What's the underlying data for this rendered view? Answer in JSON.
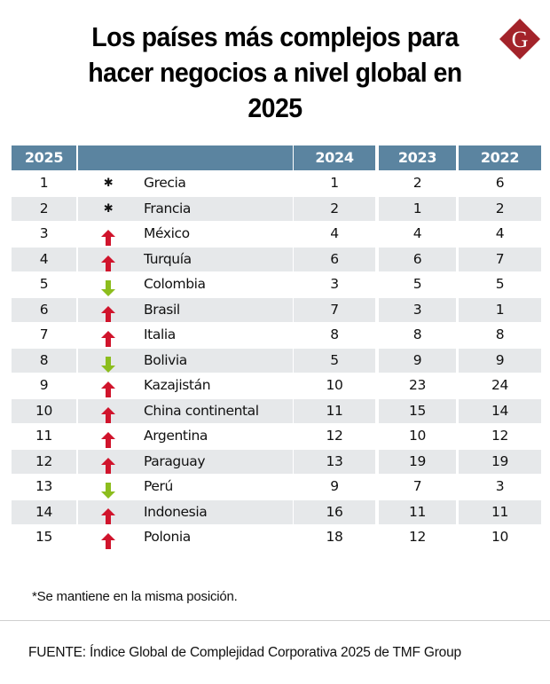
{
  "title": "Los países más complejos para hacer negocios a nivel global en 2025",
  "logo": {
    "letter": "G",
    "color": "#a3232a",
    "icon": "publisher-logo-diamond-g"
  },
  "colors": {
    "header_bg": "#5b84a0",
    "row_shaded": "#e6e8ea",
    "arrow_up": "#d0142c",
    "arrow_down": "#8cbd1d"
  },
  "table": {
    "headers": [
      "2025",
      "",
      "2024",
      "2023",
      "2022"
    ],
    "rows": [
      {
        "rank_2025": "1",
        "trend": "same",
        "country": "Grecia",
        "rank_2024": "1",
        "rank_2023": "2",
        "rank_2022": "6"
      },
      {
        "rank_2025": "2",
        "trend": "same",
        "country": "Francia",
        "rank_2024": "2",
        "rank_2023": "1",
        "rank_2022": "2"
      },
      {
        "rank_2025": "3",
        "trend": "up",
        "country": "México",
        "rank_2024": "4",
        "rank_2023": "4",
        "rank_2022": "4"
      },
      {
        "rank_2025": "4",
        "trend": "up",
        "country": "Turquía",
        "rank_2024": "6",
        "rank_2023": "6",
        "rank_2022": "7"
      },
      {
        "rank_2025": "5",
        "trend": "down",
        "country": "Colombia",
        "rank_2024": "3",
        "rank_2023": "5",
        "rank_2022": "5"
      },
      {
        "rank_2025": "6",
        "trend": "up",
        "country": "Brasil",
        "rank_2024": "7",
        "rank_2023": "3",
        "rank_2022": "1"
      },
      {
        "rank_2025": "7",
        "trend": "up",
        "country": "Italia",
        "rank_2024": "8",
        "rank_2023": "8",
        "rank_2022": "8"
      },
      {
        "rank_2025": "8",
        "trend": "down",
        "country": "Bolivia",
        "rank_2024": "5",
        "rank_2023": "9",
        "rank_2022": "9"
      },
      {
        "rank_2025": "9",
        "trend": "up",
        "country": "Kazajistán",
        "rank_2024": "10",
        "rank_2023": "23",
        "rank_2022": "24"
      },
      {
        "rank_2025": "10",
        "trend": "up",
        "country": "China continental",
        "rank_2024": "11",
        "rank_2023": "15",
        "rank_2022": "14"
      },
      {
        "rank_2025": "11",
        "trend": "up",
        "country": "Argentina",
        "rank_2024": "12",
        "rank_2023": "10",
        "rank_2022": "12"
      },
      {
        "rank_2025": "12",
        "trend": "up",
        "country": "Paraguay",
        "rank_2024": "13",
        "rank_2023": "19",
        "rank_2022": "19"
      },
      {
        "rank_2025": "13",
        "trend": "down",
        "country": "Perú",
        "rank_2024": "9",
        "rank_2023": "7",
        "rank_2022": "3"
      },
      {
        "rank_2025": "14",
        "trend": "up",
        "country": "Indonesia",
        "rank_2024": "16",
        "rank_2023": "11",
        "rank_2022": "11"
      },
      {
        "rank_2025": "15",
        "trend": "up",
        "country": "Polonia",
        "rank_2024": "18",
        "rank_2023": "12",
        "rank_2022": "10"
      }
    ],
    "same_symbol": "✱"
  },
  "note": "*Se mantiene en la misma posición.",
  "source": "FUENTE: Índice Global de Complejidad Corporativa 2025 de TMF Group"
}
